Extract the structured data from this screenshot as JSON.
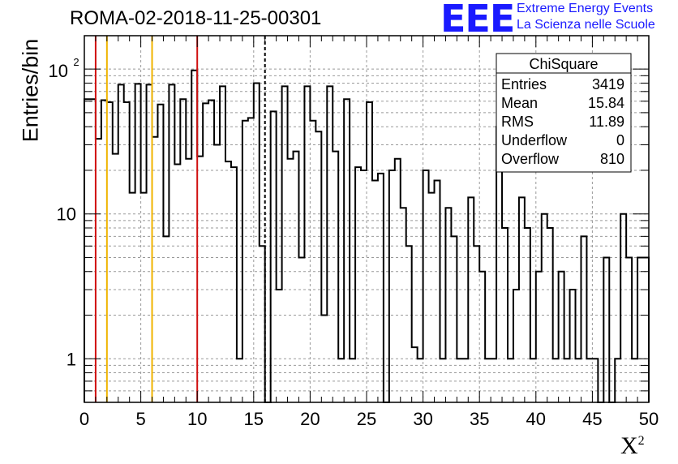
{
  "header": {
    "title": "ROMA-02-2018-11-25-00301",
    "logo": "EEE",
    "org_line1": "Extreme Energy Events",
    "org_line2": "La Scienza nelle Scuole"
  },
  "chart_data": {
    "type": "histogram",
    "title": "ROMA-02-2018-11-25-00301",
    "xlabel": "X",
    "xlabel_superscript": "2",
    "ylabel": "Entries/bin",
    "xlim": [
      0,
      50
    ],
    "ylim": [
      0.5,
      170
    ],
    "yscale": "log",
    "x_ticks": [
      0,
      5,
      10,
      15,
      20,
      25,
      30,
      35,
      40,
      45,
      50
    ],
    "y_ticks": [
      {
        "value": 1,
        "label": "1"
      },
      {
        "value": 10,
        "label": "10"
      },
      {
        "value": 100,
        "label": "10",
        "sup": "2"
      }
    ],
    "grid": true,
    "bin_width": 0.5,
    "bin_values": [
      62,
      62,
      33,
      61,
      59,
      26,
      78,
      59,
      14,
      79,
      14,
      78,
      34,
      57,
      7,
      78,
      22,
      62,
      24,
      98,
      25,
      58,
      61,
      30,
      76,
      23,
      21,
      1,
      44,
      46,
      80,
      6,
      0.4,
      51,
      3,
      76,
      24,
      27,
      5,
      76,
      44,
      37,
      2,
      76,
      27,
      1,
      62,
      1,
      21,
      20,
      59,
      17,
      19,
      0.4,
      20,
      24,
      11,
      6,
      1.2,
      1,
      20,
      14,
      17,
      1,
      11,
      7,
      1,
      1,
      13,
      6,
      4,
      1,
      1,
      40,
      8,
      1,
      3,
      13,
      8,
      1,
      4,
      10,
      8,
      1,
      4,
      1,
      3,
      1,
      7,
      1,
      1,
      0.4,
      5,
      0.4,
      1,
      10,
      5,
      1,
      5,
      5
    ],
    "vertical_lines": [
      {
        "x": 1,
        "color": "#d01010",
        "style": "solid"
      },
      {
        "x": 2,
        "color": "#f0b400",
        "style": "solid"
      },
      {
        "x": 6,
        "color": "#f0b400",
        "style": "solid"
      },
      {
        "x": 10,
        "color": "#d01010",
        "style": "solid"
      },
      {
        "x": 16,
        "color": "#000000",
        "style": "dashed"
      }
    ],
    "legend_position": "top-right",
    "stats_box": {
      "title": "ChiSquare",
      "rows": [
        {
          "label": "Entries",
          "value": "3419"
        },
        {
          "label": "Mean",
          "value": "15.84"
        },
        {
          "label": "RMS",
          "value": "11.89"
        },
        {
          "label": "Underflow",
          "value": "0"
        },
        {
          "label": "Overflow",
          "value": "810"
        }
      ]
    }
  }
}
